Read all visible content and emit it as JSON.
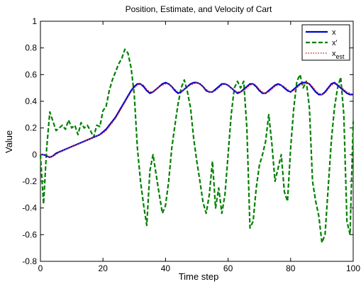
{
  "chart_data": {
    "type": "line",
    "title": "Position, Estimate, and Velocity of Cart",
    "xlabel": "Time step",
    "ylabel": "Value",
    "xlim": [
      0,
      100
    ],
    "ylim": [
      -0.8,
      1
    ],
    "xticks": [
      0,
      20,
      40,
      60,
      80,
      100
    ],
    "xtick_labels": [
      "0",
      "20",
      "40",
      "60",
      "80",
      "100"
    ],
    "yticks": [
      -0.8,
      -0.6,
      -0.4,
      -0.2,
      0,
      0.2,
      0.4,
      0.6,
      0.8,
      1
    ],
    "ytick_labels": [
      "-0.8",
      "-0.6",
      "-0.4",
      "-0.2",
      "0",
      "0.2",
      "0.4",
      "0.6",
      "0.8",
      "1"
    ],
    "grid": false,
    "legend_position": "top-right",
    "series": [
      {
        "name": "x",
        "legend_main": "x",
        "legend_sub": "",
        "color": "#0000cc",
        "style": "solid",
        "x": [
          0,
          1,
          2,
          3,
          4,
          5,
          6,
          7,
          8,
          9,
          10,
          11,
          12,
          13,
          14,
          15,
          16,
          17,
          18,
          19,
          20,
          21,
          22,
          23,
          24,
          25,
          26,
          27,
          28,
          29,
          30,
          31,
          32,
          33,
          34,
          35,
          36,
          37,
          38,
          39,
          40,
          41,
          42,
          43,
          44,
          45,
          46,
          47,
          48,
          49,
          50,
          51,
          52,
          53,
          54,
          55,
          56,
          57,
          58,
          59,
          60,
          61,
          62,
          63,
          64,
          65,
          66,
          67,
          68,
          69,
          70,
          71,
          72,
          73,
          74,
          75,
          76,
          77,
          78,
          79,
          80,
          81,
          82,
          83,
          84,
          85,
          86,
          87,
          88,
          89,
          90,
          91,
          92,
          93,
          94,
          95,
          96,
          97,
          98,
          99,
          100
        ],
        "values": [
          0.0,
          0.0,
          -0.01,
          -0.02,
          -0.01,
          0.01,
          0.02,
          0.03,
          0.04,
          0.05,
          0.06,
          0.07,
          0.08,
          0.09,
          0.1,
          0.11,
          0.12,
          0.13,
          0.14,
          0.15,
          0.17,
          0.19,
          0.22,
          0.25,
          0.28,
          0.32,
          0.36,
          0.4,
          0.44,
          0.48,
          0.51,
          0.53,
          0.53,
          0.51,
          0.48,
          0.46,
          0.47,
          0.49,
          0.51,
          0.53,
          0.54,
          0.53,
          0.51,
          0.48,
          0.46,
          0.47,
          0.49,
          0.51,
          0.53,
          0.54,
          0.54,
          0.53,
          0.51,
          0.48,
          0.47,
          0.47,
          0.49,
          0.51,
          0.53,
          0.53,
          0.52,
          0.5,
          0.48,
          0.46,
          0.47,
          0.49,
          0.51,
          0.53,
          0.53,
          0.51,
          0.48,
          0.46,
          0.46,
          0.48,
          0.5,
          0.52,
          0.53,
          0.52,
          0.5,
          0.48,
          0.47,
          0.49,
          0.51,
          0.53,
          0.54,
          0.54,
          0.53,
          0.5,
          0.47,
          0.45,
          0.45,
          0.47,
          0.5,
          0.53,
          0.54,
          0.52,
          0.5,
          0.48,
          0.46,
          0.45,
          0.45
        ]
      },
      {
        "name": "x'",
        "legend_main": "x'",
        "legend_sub": "",
        "color": "#008000",
        "style": "dashed",
        "x": [
          0,
          1,
          2,
          3,
          4,
          5,
          6,
          7,
          8,
          9,
          10,
          11,
          12,
          13,
          14,
          15,
          16,
          17,
          18,
          19,
          20,
          21,
          22,
          23,
          24,
          25,
          26,
          27,
          28,
          29,
          30,
          31,
          32,
          33,
          34,
          35,
          36,
          37,
          38,
          39,
          40,
          41,
          42,
          43,
          44,
          45,
          46,
          47,
          48,
          49,
          50,
          51,
          52,
          53,
          54,
          55,
          56,
          57,
          58,
          59,
          60,
          61,
          62,
          63,
          64,
          65,
          66,
          67,
          68,
          69,
          70,
          71,
          72,
          73,
          74,
          75,
          76,
          77,
          78,
          79,
          80,
          81,
          82,
          83,
          84,
          85,
          86,
          87,
          88,
          89,
          90,
          91,
          92,
          93,
          94,
          95,
          96,
          97,
          98,
          99,
          100
        ],
        "values": [
          0.0,
          -0.37,
          0.05,
          0.32,
          0.25,
          0.18,
          0.2,
          0.22,
          0.19,
          0.26,
          0.2,
          0.22,
          0.15,
          0.24,
          0.2,
          0.22,
          0.18,
          0.13,
          0.22,
          0.21,
          0.33,
          0.36,
          0.48,
          0.56,
          0.62,
          0.68,
          0.72,
          0.79,
          0.76,
          0.65,
          0.45,
          0.05,
          -0.2,
          -0.38,
          -0.53,
          -0.12,
          0.0,
          -0.15,
          -0.3,
          -0.44,
          -0.38,
          -0.2,
          0.05,
          0.22,
          0.38,
          0.5,
          0.56,
          0.47,
          0.35,
          0.12,
          -0.05,
          -0.2,
          -0.36,
          -0.44,
          -0.3,
          -0.05,
          -0.4,
          -0.25,
          -0.44,
          -0.3,
          0.0,
          0.3,
          0.5,
          0.55,
          0.5,
          0.55,
          0.2,
          -0.55,
          -0.5,
          -0.25,
          -0.08,
          0.0,
          0.1,
          0.3,
          0.08,
          -0.2,
          -0.1,
          0.0,
          -0.28,
          -0.35,
          0.05,
          0.35,
          0.55,
          0.6,
          0.5,
          0.55,
          0.35,
          -0.2,
          -0.35,
          -0.46,
          -0.66,
          -0.6,
          -0.25,
          0.1,
          0.35,
          0.5,
          0.58,
          0.3,
          -0.5,
          -0.6,
          0.25
        ]
      },
      {
        "name": "x_est",
        "legend_main": "x",
        "legend_sub": "est",
        "color": "#cc3333",
        "style": "dotted",
        "x": [
          0,
          1,
          2,
          3,
          4,
          5,
          6,
          7,
          8,
          9,
          10,
          11,
          12,
          13,
          14,
          15,
          16,
          17,
          18,
          19,
          20,
          21,
          22,
          23,
          24,
          25,
          26,
          27,
          28,
          29,
          30,
          31,
          32,
          33,
          34,
          35,
          36,
          37,
          38,
          39,
          40,
          41,
          42,
          43,
          44,
          45,
          46,
          47,
          48,
          49,
          50,
          51,
          52,
          53,
          54,
          55,
          56,
          57,
          58,
          59,
          60,
          61,
          62,
          63,
          64,
          65,
          66,
          67,
          68,
          69,
          70,
          71,
          72,
          73,
          74,
          75,
          76,
          77,
          78,
          79,
          80,
          81,
          82,
          83,
          84,
          85,
          86,
          87,
          88,
          89,
          90,
          91,
          92,
          93,
          94,
          95,
          96,
          97,
          98,
          99,
          100
        ],
        "values": [
          0.0,
          0.0,
          -0.01,
          -0.02,
          -0.01,
          0.0,
          0.02,
          0.03,
          0.04,
          0.05,
          0.06,
          0.07,
          0.08,
          0.09,
          0.1,
          0.11,
          0.12,
          0.13,
          0.14,
          0.15,
          0.16,
          0.18,
          0.21,
          0.24,
          0.27,
          0.31,
          0.35,
          0.39,
          0.43,
          0.47,
          0.5,
          0.52,
          0.53,
          0.52,
          0.49,
          0.47,
          0.47,
          0.49,
          0.51,
          0.52,
          0.53,
          0.53,
          0.51,
          0.49,
          0.47,
          0.47,
          0.49,
          0.51,
          0.52,
          0.53,
          0.54,
          0.53,
          0.51,
          0.49,
          0.47,
          0.47,
          0.48,
          0.5,
          0.52,
          0.53,
          0.52,
          0.5,
          0.48,
          0.47,
          0.47,
          0.48,
          0.5,
          0.52,
          0.53,
          0.52,
          0.49,
          0.47,
          0.46,
          0.47,
          0.49,
          0.51,
          0.52,
          0.52,
          0.51,
          0.49,
          0.47,
          0.48,
          0.5,
          0.52,
          0.53,
          0.54,
          0.53,
          0.51,
          0.48,
          0.46,
          0.45,
          0.46,
          0.49,
          0.52,
          0.53,
          0.53,
          0.51,
          0.49,
          0.47,
          0.46,
          0.45
        ]
      }
    ]
  }
}
